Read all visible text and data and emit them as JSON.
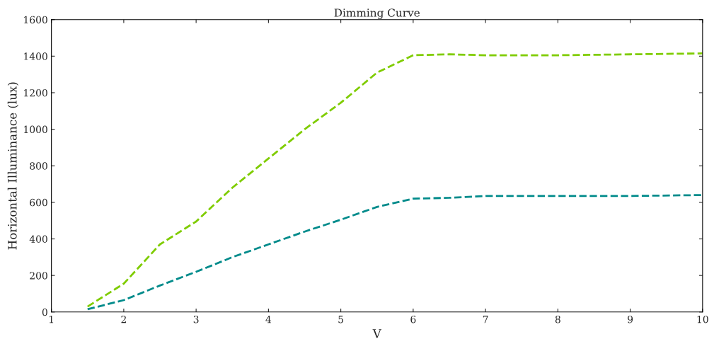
{
  "chart_data": {
    "type": "line",
    "title": "Dimming Curve",
    "xlabel": "V",
    "ylabel": "Horizontal Illuminance (lux)",
    "x": [
      1.5,
      2,
      2.5,
      3,
      3.5,
      4,
      4.5,
      5,
      5.5,
      6,
      6.5,
      7,
      8,
      9,
      10
    ],
    "series": [
      {
        "color": "#7fcc00",
        "values": [
          30,
          155,
          370,
          495,
          680,
          840,
          1000,
          1145,
          1310,
          1405,
          1410,
          1405,
          1405,
          1410,
          1415
        ]
      },
      {
        "color": "#008b8b",
        "values": [
          15,
          65,
          145,
          220,
          300,
          370,
          440,
          505,
          575,
          620,
          625,
          635,
          635,
          635,
          640
        ]
      }
    ],
    "xlim": [
      1,
      10
    ],
    "xticks": [
      1,
      2,
      3,
      4,
      5,
      6,
      7,
      8,
      9,
      10
    ],
    "ylim": [
      0,
      1600
    ],
    "yticks": [
      0,
      200,
      400,
      600,
      800,
      1000,
      1200,
      1400,
      1600
    ],
    "line_style": "dashed",
    "grid": false,
    "legend": false
  }
}
